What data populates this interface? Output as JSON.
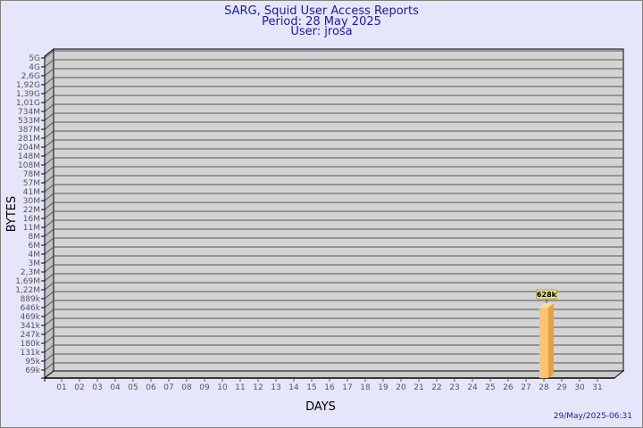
{
  "chart_data": {
    "type": "bar",
    "title": [
      "SARG, Squid User Access Reports",
      "Period: 28 May 2025",
      "User: jrosa"
    ],
    "xlabel": "DAYS",
    "ylabel": "BYTES",
    "yscale": "log",
    "ytick_labels": [
      "5G",
      "4G",
      "2,6G",
      "1,92G",
      "1,39G",
      "1,01G",
      "734M",
      "533M",
      "387M",
      "281M",
      "204M",
      "148M",
      "108M",
      "78M",
      "57M",
      "41M",
      "30M",
      "22M",
      "16M",
      "11M",
      "8M",
      "6M",
      "4M",
      "3M",
      "2,3M",
      "1,69M",
      "1,22M",
      "889k",
      "646k",
      "469k",
      "341k",
      "247k",
      "180k",
      "131k",
      "95k",
      "69k"
    ],
    "categories": [
      "01",
      "02",
      "03",
      "04",
      "05",
      "06",
      "07",
      "08",
      "09",
      "10",
      "11",
      "12",
      "13",
      "14",
      "15",
      "16",
      "17",
      "18",
      "19",
      "20",
      "21",
      "22",
      "23",
      "24",
      "25",
      "26",
      "27",
      "28",
      "29",
      "30",
      "31"
    ],
    "bars": [
      {
        "day": "28",
        "value_label": "628k",
        "value_index": 28.1
      }
    ],
    "grid": true,
    "bar_color": "#ffc46a",
    "timestamp": "29/May/2025-06:31"
  }
}
